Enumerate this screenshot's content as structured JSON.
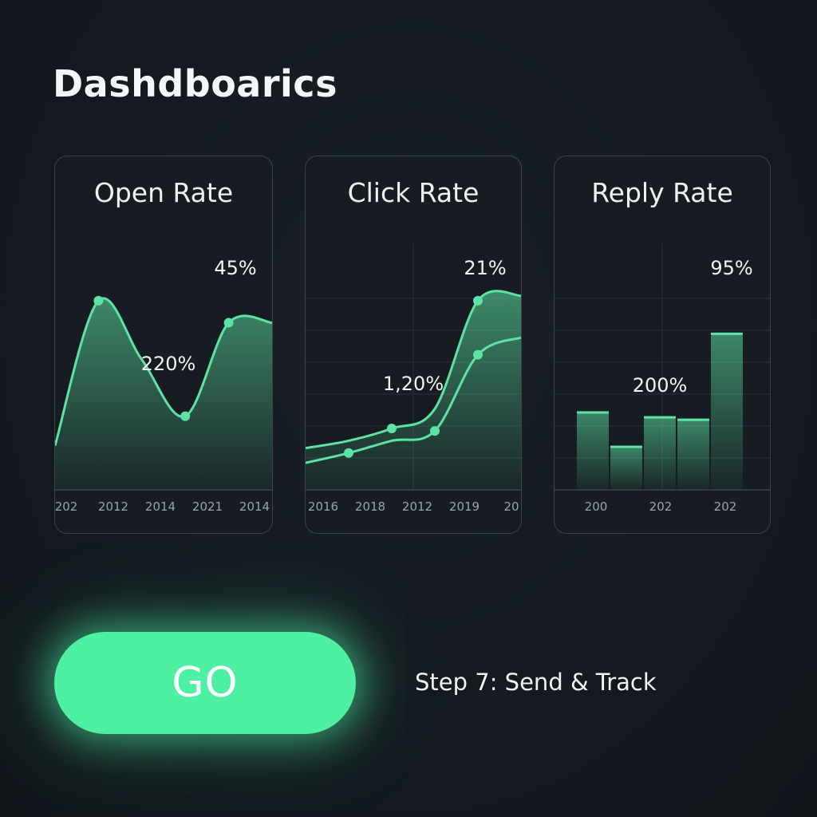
{
  "page": {
    "title": "Dashdboarics"
  },
  "colors": {
    "background": "#14191f",
    "card_border": "#3a424b",
    "accent": "#4ef0a3",
    "line": "#5de3a3",
    "text": "#f2f4f5",
    "tick_text": "#9aa3ab"
  },
  "cards": [
    {
      "title": "Open Rate"
    },
    {
      "title": "Click Rate"
    },
    {
      "title": "Reply Rate"
    }
  ],
  "chart_data": [
    {
      "type": "area",
      "title": "Open Rate",
      "x_tick_labels": [
        "202",
        "2012",
        "2014",
        "2021",
        "2014"
      ],
      "series": [
        {
          "values": [
            0.18,
            0.77,
            0.53,
            0.3,
            0.68,
            0.68
          ]
        }
      ],
      "markers": [
        1,
        3,
        4
      ],
      "ylim": [
        0,
        1
      ],
      "annotations": [
        "45%",
        "220%"
      ],
      "grid": false
    },
    {
      "type": "area",
      "title": "Click Rate",
      "x_tick_labels": [
        "2016",
        "2018",
        "2012",
        "2019",
        "20"
      ],
      "series": [
        {
          "values": [
            0.17,
            0.2,
            0.25,
            0.33,
            0.77,
            0.79
          ]
        },
        {
          "values": [
            0.11,
            0.15,
            0.2,
            0.24,
            0.55,
            0.62
          ]
        }
      ],
      "ylim": [
        0,
        1
      ],
      "annotations": [
        "21%",
        "1,20%"
      ],
      "grid": true
    },
    {
      "type": "bar",
      "title": "Reply Rate",
      "x_tick_labels": [
        "200",
        "202",
        "202"
      ],
      "values": [
        0.32,
        0.18,
        0.3,
        0.29,
        0.64
      ],
      "ylim": [
        0,
        1
      ],
      "annotations": [
        "95%",
        "200%"
      ],
      "grid": true
    }
  ],
  "cta": {
    "button_label": "GO",
    "step_text": "Step 7: Send & Track"
  }
}
